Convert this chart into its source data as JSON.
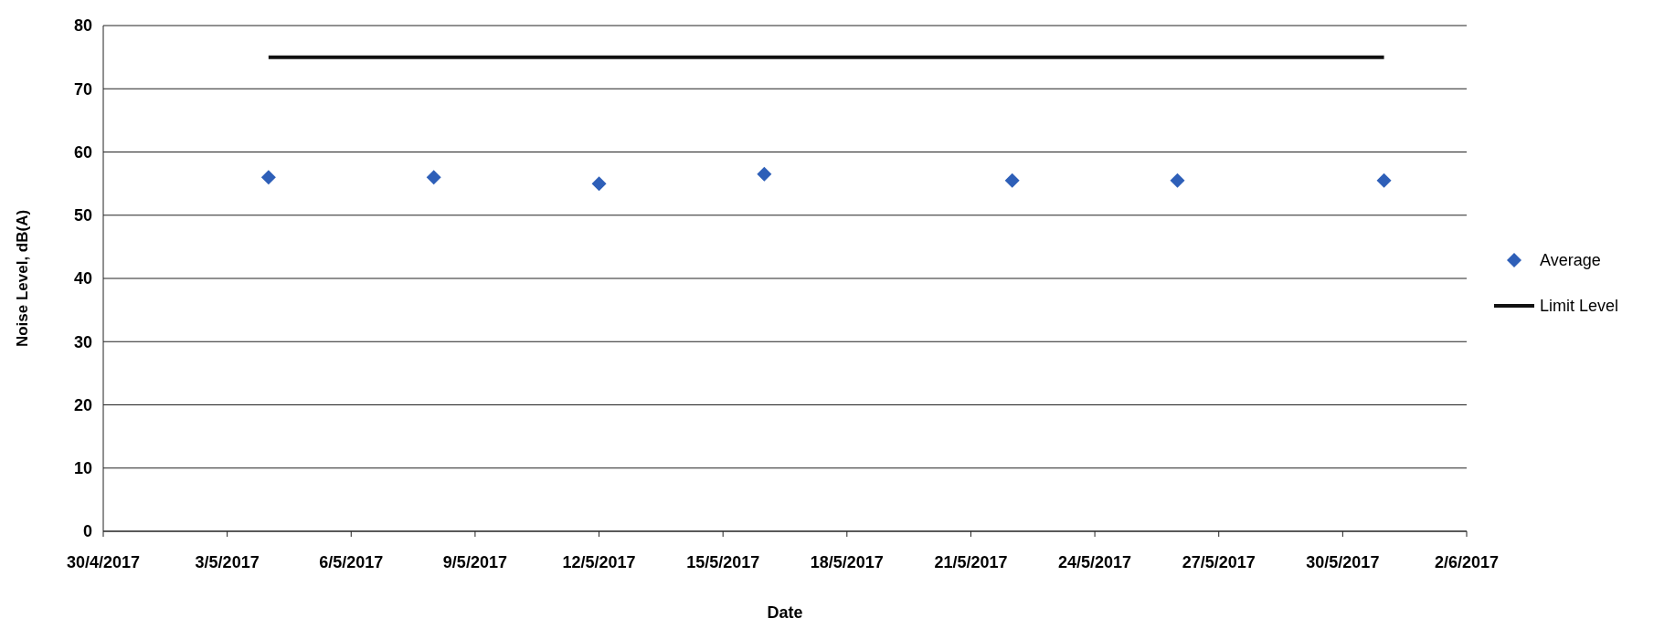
{
  "chart_data": {
    "type": "scatter",
    "xlabel": "Date",
    "ylabel": "Noise Level, dB(A)",
    "xlim": [
      "2017-04-30",
      "2017-06-02"
    ],
    "xticks": [
      {
        "value": "2017-04-30",
        "label": "30/4/2017"
      },
      {
        "value": "2017-05-03",
        "label": "3/5/2017"
      },
      {
        "value": "2017-05-06",
        "label": "6/5/2017"
      },
      {
        "value": "2017-05-09",
        "label": "9/5/2017"
      },
      {
        "value": "2017-05-12",
        "label": "12/5/2017"
      },
      {
        "value": "2017-05-15",
        "label": "15/5/2017"
      },
      {
        "value": "2017-05-18",
        "label": "18/5/2017"
      },
      {
        "value": "2017-05-21",
        "label": "21/5/2017"
      },
      {
        "value": "2017-05-24",
        "label": "24/5/2017"
      },
      {
        "value": "2017-05-27",
        "label": "27/5/2017"
      },
      {
        "value": "2017-05-30",
        "label": "30/5/2017"
      },
      {
        "value": "2017-06-02",
        "label": "2/6/2017"
      }
    ],
    "ylim": [
      0,
      80
    ],
    "yticks": [
      0,
      10,
      20,
      30,
      40,
      50,
      60,
      70,
      80
    ],
    "grid": "y",
    "legend": "right",
    "series": [
      {
        "name": "Average",
        "marker": "diamond",
        "color": "#2e5fb8",
        "x": [
          "2017-05-04",
          "2017-05-08",
          "2017-05-12",
          "2017-05-16",
          "2017-05-22",
          "2017-05-26",
          "2017-05-31"
        ],
        "values": [
          56,
          56,
          55,
          56.5,
          55.5,
          55.5,
          55.5
        ]
      },
      {
        "name": "Limit Level",
        "type": "line",
        "marker": "none",
        "line_style": "solid",
        "color": "#111111",
        "x": [
          "2017-05-04",
          "2017-05-31"
        ],
        "values": [
          75,
          75
        ]
      }
    ]
  }
}
